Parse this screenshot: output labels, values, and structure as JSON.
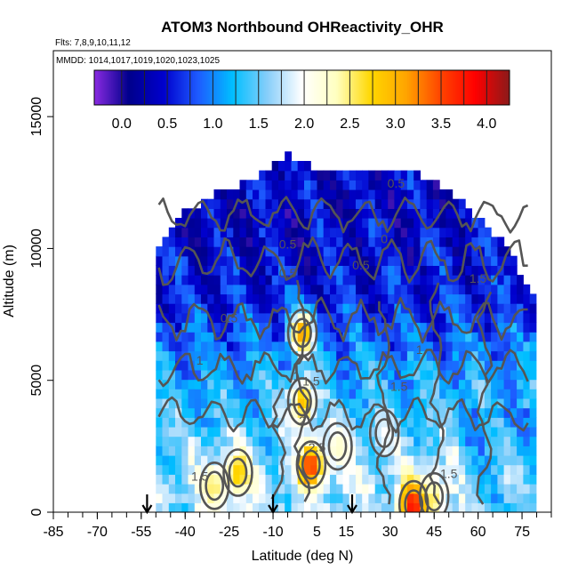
{
  "chart_data": {
    "type": "heatmap",
    "title": "ATOM3 Northbound OHReactivity_OHR",
    "subtitle_flights": "Flts: 7,8,9,10,11,12",
    "subtitle_dates": "MMDD: 1014,1017,1019,1020,1023,1025",
    "xlabel": "Latitude (deg N)",
    "ylabel": "Altitude (m)",
    "xlim": [
      -85,
      85
    ],
    "ylim": [
      0,
      17500
    ],
    "x_ticks": [
      "-85",
      "-70",
      "-55",
      "-40",
      "-25",
      "-10",
      "5",
      "15",
      "30",
      "45",
      "60",
      "75"
    ],
    "x_tick_values": [
      -85,
      -70,
      -55,
      -40,
      -25,
      -10,
      5,
      15,
      30,
      45,
      60,
      75
    ],
    "y_ticks": [
      "0",
      "5000",
      "10000",
      "15000"
    ],
    "y_tick_values": [
      0,
      5000,
      10000,
      15000
    ],
    "colorbar": {
      "range": [
        -0.3,
        4.25
      ],
      "labels": [
        "0.0",
        "0.5",
        "1.0",
        "1.5",
        "2.0",
        "2.5",
        "3.0",
        "3.5",
        "4.0"
      ],
      "label_values": [
        0,
        0.5,
        1,
        1.5,
        2,
        2.5,
        3,
        3.5,
        4
      ],
      "colors": [
        "#8a2be2",
        "#00008b",
        "#0000cd",
        "#1e5bff",
        "#00bfff",
        "#87cefa",
        "#ffffff",
        "#ffffc0",
        "#ffd700",
        "#ffa500",
        "#ff4500",
        "#ff0000",
        "#8b1a1a"
      ]
    },
    "data_extent": {
      "lat_min": -50,
      "lat_max": 78,
      "top_alt": [
        [
          -50,
          9500
        ],
        [
          -45,
          10600
        ],
        [
          -40,
          11200
        ],
        [
          -30,
          11900
        ],
        [
          -20,
          12300
        ],
        [
          -10,
          12900
        ],
        [
          -5,
          13400
        ],
        [
          5,
          12900
        ],
        [
          20,
          12900
        ],
        [
          35,
          12900
        ],
        [
          45,
          12300
        ],
        [
          55,
          11500
        ],
        [
          65,
          10500
        ],
        [
          72,
          9500
        ],
        [
          78,
          8000
        ]
      ]
    },
    "hotspots": [
      {
        "lat": 0,
        "alt": 6800,
        "value": 3.3
      },
      {
        "lat": 0,
        "alt": 4200,
        "value": 3.1
      },
      {
        "lat": 3,
        "alt": 1800,
        "value": 3.8
      },
      {
        "lat": -22,
        "alt": 1500,
        "value": 2.9
      },
      {
        "lat": -30,
        "alt": 1000,
        "value": 2.6
      },
      {
        "lat": 38,
        "alt": 300,
        "value": 4.1
      },
      {
        "lat": 45,
        "alt": 600,
        "value": 2.6
      },
      {
        "lat": 12,
        "alt": 2500,
        "value": 2.3
      },
      {
        "lat": 28,
        "alt": 3000,
        "value": 2.0
      }
    ],
    "contour_labels": [
      "0.5",
      "0.5",
      "0.5",
      "1",
      "1",
      "1.5",
      "1.5",
      "2",
      "2.5",
      "0.5",
      "1.5",
      "0",
      "0.5",
      "1",
      "1.5",
      "1.5"
    ],
    "markers": {
      "type": "arrow_down",
      "latitudes": [
        -53,
        -10,
        17
      ]
    }
  }
}
